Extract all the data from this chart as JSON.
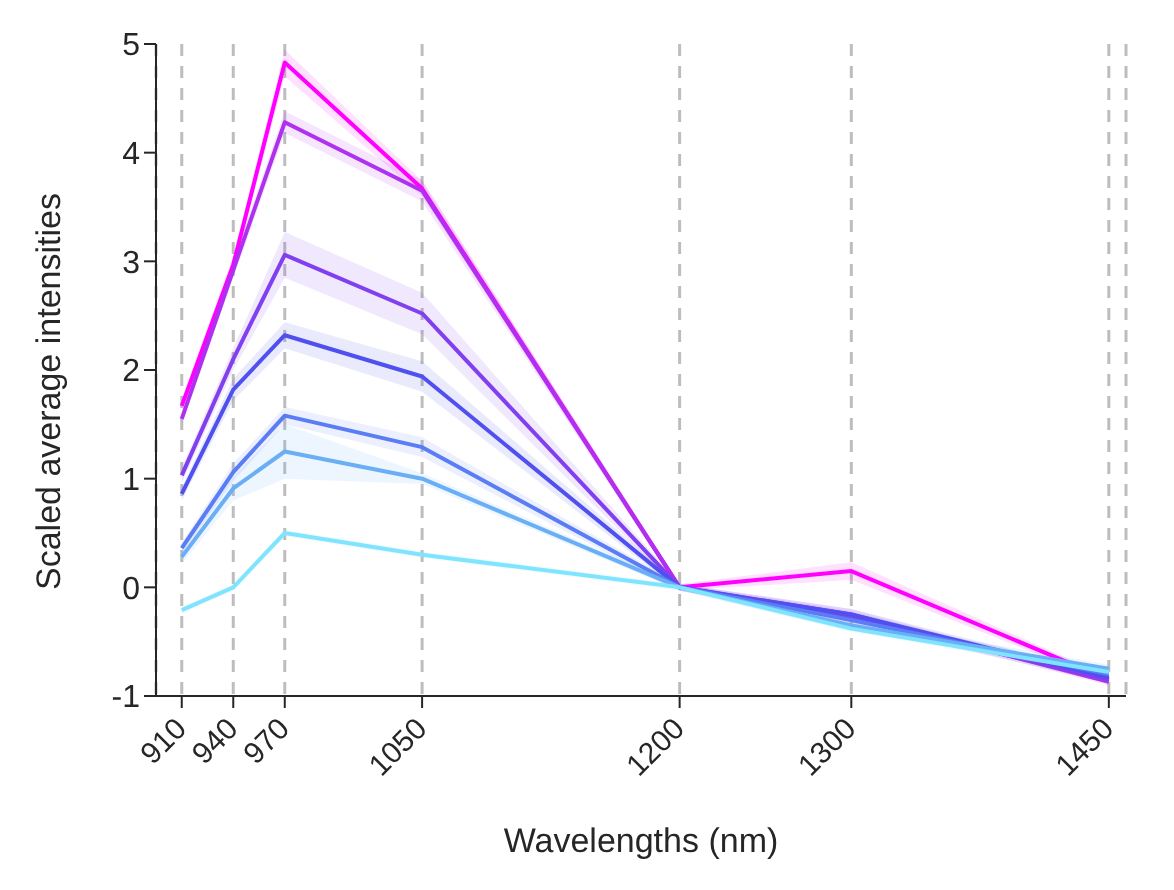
{
  "chart_data": {
    "type": "line",
    "xlabel": "Wavelengths (nm)",
    "ylabel": "Scaled average intensities",
    "x": [
      910,
      940,
      970,
      1050,
      1200,
      1300,
      1450
    ],
    "xlim": [
      895,
      1460
    ],
    "xticks": [
      910,
      940,
      970,
      1050,
      1200,
      1300,
      1450
    ],
    "ylim": [
      -1,
      5
    ],
    "yticks": [
      -1,
      0,
      1,
      2,
      3,
      4,
      5
    ],
    "grid": "x",
    "line_style": "solid",
    "marker": "none",
    "legend": false,
    "series": [
      {
        "color": "#ff00ff",
        "values": [
          1.67,
          2.97,
          4.83,
          3.67,
          0,
          0.15,
          -0.85
        ],
        "lower": [
          1.6,
          2.9,
          4.7,
          3.6,
          -0.03,
          0.07,
          -0.88
        ],
        "upper": [
          1.74,
          3.05,
          4.95,
          3.74,
          0.03,
          0.23,
          -0.82
        ]
      },
      {
        "color": "#b030f0",
        "values": [
          1.55,
          2.92,
          4.28,
          3.65,
          0,
          -0.25,
          -0.87
        ],
        "lower": [
          1.5,
          2.85,
          4.18,
          3.55,
          -0.03,
          -0.3,
          -0.9
        ],
        "upper": [
          1.6,
          3.0,
          4.38,
          3.75,
          0.03,
          -0.2,
          -0.84
        ]
      },
      {
        "color": "#8040f0",
        "values": [
          1.03,
          2.1,
          3.06,
          2.52,
          0,
          -0.28,
          -0.85
        ],
        "lower": [
          0.96,
          2.0,
          2.85,
          2.33,
          -0.03,
          -0.34,
          -0.88
        ],
        "upper": [
          1.1,
          2.2,
          3.27,
          2.71,
          0.03,
          -0.22,
          -0.82
        ]
      },
      {
        "color": "#5050f0",
        "values": [
          0.86,
          1.82,
          2.32,
          1.94,
          0,
          -0.25,
          -0.83
        ],
        "lower": [
          0.8,
          1.72,
          2.2,
          1.8,
          -0.03,
          -0.3,
          -0.86
        ],
        "upper": [
          0.92,
          1.92,
          2.44,
          2.08,
          0.03,
          -0.2,
          -0.8
        ]
      },
      {
        "color": "#5a7cf5",
        "values": [
          0.36,
          1.06,
          1.58,
          1.29,
          0,
          -0.3,
          -0.8
        ],
        "lower": [
          0.31,
          0.98,
          1.5,
          1.2,
          -0.03,
          -0.35,
          -0.83
        ],
        "upper": [
          0.41,
          1.14,
          1.66,
          1.38,
          0.03,
          -0.25,
          -0.77
        ]
      },
      {
        "color": "#6aaef5",
        "values": [
          0.28,
          0.91,
          1.25,
          1.0,
          0,
          -0.35,
          -0.75
        ],
        "lower": [
          0.22,
          0.8,
          1.0,
          0.95,
          -0.03,
          -0.4,
          -0.79
        ],
        "upper": [
          0.34,
          1.02,
          1.5,
          1.05,
          0.03,
          -0.3,
          -0.71
        ]
      },
      {
        "color": "#80e4ff",
        "values": [
          -0.21,
          0.0,
          0.5,
          0.3,
          0,
          -0.38,
          -0.78
        ],
        "lower": [
          -0.24,
          -0.03,
          0.47,
          0.27,
          -0.03,
          -0.41,
          -0.81
        ],
        "upper": [
          -0.18,
          0.03,
          0.53,
          0.33,
          0.03,
          -0.35,
          -0.75
        ]
      }
    ]
  }
}
